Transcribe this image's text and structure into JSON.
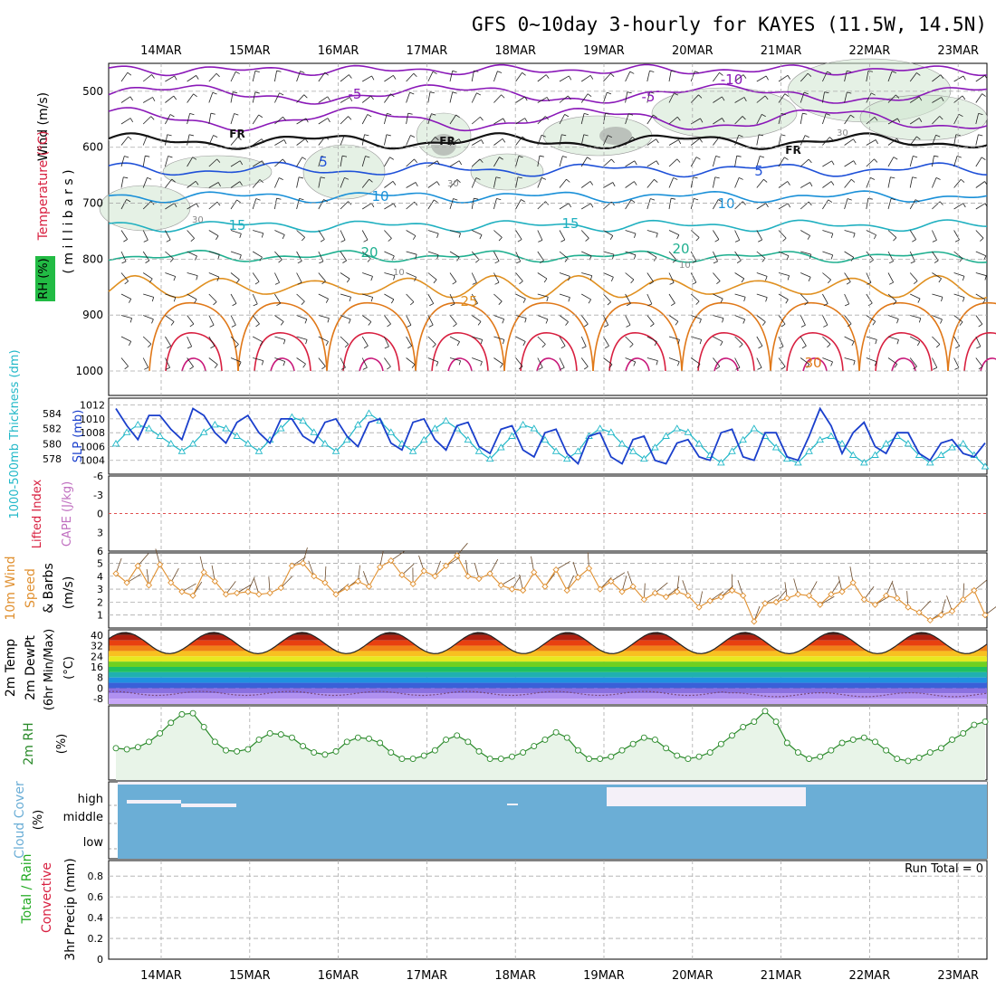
{
  "title": "GFS 0~10day 3-hourly for KAYES (11.5W, 14.5N)",
  "dates": [
    "14MAR",
    "15MAR",
    "16MAR",
    "17MAR",
    "18MAR",
    "19MAR",
    "20MAR",
    "21MAR",
    "22MAR",
    "23MAR"
  ],
  "colors": {
    "temp_cold": "#8a18b8",
    "temp_mid": "#1e50d8",
    "temp_warm": "#e09020",
    "temp_hot": "#d82040",
    "slp": "#1a3fcc",
    "thickness": "#22b8c8",
    "wind10": "#e09030",
    "rh2m": "#2a8a2a",
    "cloud": "#6baed6",
    "grid": "#aaaaaa"
  },
  "panels": {
    "upper": {
      "ylabel_wind": "Wind (m/s)",
      "ylabel_temp": "Temperature (°C)",
      "ylabel_rh": "RH (%)",
      "ylabel_mb": "( m i l l i b a r s )",
      "yticks": [
        "500",
        "600",
        "700",
        "800",
        "900",
        "1000"
      ],
      "freezing_label": "FR",
      "contour_labels": [
        "-10",
        "-5",
        "5",
        "10",
        "15",
        "20",
        "25",
        "30"
      ],
      "rh_labels": [
        "30",
        "10"
      ]
    },
    "slp": {
      "ylabel_thick": "1000-500mb Thickness (dm)",
      "ylabel_slp": "SLP (mb)",
      "left_ticks": [
        "584",
        "582",
        "580",
        "578"
      ],
      "right_ticks": [
        "1012",
        "1010",
        "1008",
        "1006",
        "1004"
      ]
    },
    "cape": {
      "ylabel_li": "Lifted Index",
      "ylabel_cape": "CAPE (J/kg)",
      "ticks": [
        "-6",
        "-3",
        "0",
        "3",
        "6"
      ]
    },
    "wind10": {
      "ylabel": "10m Wind",
      "ylabel2": "Speed",
      "ylabel3": "& Barbs",
      "ylabel_units": "(m/s)",
      "ticks": [
        "5",
        "4",
        "3",
        "2",
        "1"
      ]
    },
    "temp2m": {
      "ylabel1": "2m Temp",
      "ylabel2": "2m DewPt",
      "ylabel3": "(6hr Min/Max)",
      "ylabel_units": "(°C)",
      "ticks": [
        "40",
        "32",
        "24",
        "16",
        "8",
        "0",
        "-8"
      ]
    },
    "rh2m": {
      "ylabel": "2m RH",
      "ylabel_units": "(%)"
    },
    "cloud": {
      "ylabel": "Cloud Cover",
      "ylabel_units": "(%)",
      "levels": [
        "high",
        "middle",
        "low"
      ]
    },
    "precip": {
      "ylabel1": "Total / Rain",
      "ylabel2": "Convective",
      "ylabel3": "3hr Precip (mm)",
      "ticks": [
        "0.8",
        "0.6",
        "0.4",
        "0.2",
        "0"
      ],
      "run_total": "Run Total = 0"
    }
  },
  "chart_data": {
    "type": "line",
    "time_step_hours": 3,
    "n_steps": 80,
    "series": [
      {
        "name": "SLP (mb)",
        "panel": "slp",
        "values": [
          1011.5,
          1009,
          1007,
          1010.5,
          1010.5,
          1008.5,
          1007,
          1011.5,
          1010.5,
          1008,
          1006.5,
          1009.5,
          1010.5,
          1008,
          1006.5,
          1010,
          1010,
          1007.5,
          1006.5,
          1009.5,
          1010,
          1007.5,
          1006,
          1009.5,
          1010,
          1006.5,
          1005.5,
          1009.5,
          1010,
          1007,
          1005.5,
          1009,
          1009.5,
          1006,
          1005,
          1008.5,
          1009,
          1005.5,
          1004.5,
          1008,
          1008.5,
          1005,
          1003.5,
          1007.5,
          1008,
          1004.5,
          1003.5,
          1007,
          1007.5,
          1004,
          1003.5,
          1006.5,
          1007,
          1004.5,
          1004,
          1008,
          1008.5,
          1004.5,
          1004,
          1008,
          1008,
          1004.5,
          1004,
          1007.5,
          1011.5,
          1009,
          1005,
          1008,
          1009.5,
          1006,
          1005,
          1008,
          1008,
          1005,
          1004,
          1006.5,
          1007,
          1005,
          1004.5,
          1006.5
        ]
      },
      {
        "name": "1000-500mb Thickness (dm)",
        "panel": "slp",
        "values": [
          580,
          581.5,
          582.5,
          582,
          581,
          580,
          579,
          580,
          581.5,
          582.5,
          582,
          581,
          580,
          579,
          580.5,
          582,
          583.5,
          583,
          581.5,
          580,
          579,
          580.5,
          582.5,
          584,
          583,
          581.5,
          580,
          579,
          580.5,
          582,
          583,
          582,
          580.5,
          579,
          578,
          579.5,
          581,
          582.5,
          582,
          580.5,
          579,
          578,
          579,
          581,
          582,
          581.5,
          580,
          579,
          578,
          579.5,
          581,
          582,
          581.5,
          580,
          578.5,
          577.5,
          579,
          580.5,
          582,
          581,
          579.5,
          578,
          577.5,
          579,
          580.5,
          581,
          580,
          578.5,
          577.5,
          578.5,
          580,
          581,
          580,
          578.5,
          577.5,
          578.5,
          579.5,
          580,
          578.5,
          577
        ]
      },
      {
        "name": "10m Wind Speed (m/s)",
        "panel": "wind10",
        "values": [
          4.2,
          3.5,
          4.8,
          3.3,
          4.9,
          3.5,
          2.8,
          2.5,
          4.3,
          3.6,
          2.6,
          2.7,
          2.8,
          2.6,
          2.7,
          3.1,
          4.8,
          5.0,
          4.0,
          3.5,
          2.6,
          3.1,
          3.6,
          3.2,
          4.7,
          5.2,
          4.1,
          3.4,
          4.4,
          4.0,
          4.8,
          5.6,
          4.0,
          3.8,
          4.2,
          3.3,
          3.0,
          2.9,
          4.3,
          3.2,
          4.5,
          2.9,
          3.9,
          4.6,
          3.0,
          3.6,
          2.8,
          3.2,
          2.2,
          2.7,
          2.4,
          2.8,
          2.5,
          1.6,
          2.1,
          2.4,
          2.9,
          2.5,
          0.5,
          1.9,
          2.0,
          2.3,
          2.6,
          2.5,
          1.8,
          2.6,
          2.8,
          3.5,
          2.2,
          1.8,
          2.5,
          2.3,
          1.6,
          1.2,
          0.6,
          1.0,
          1.3,
          2.2,
          2.9,
          1.0
        ]
      },
      {
        "name": "2m RH (%)",
        "panel": "rh2m",
        "values": [
          30,
          29,
          31,
          36,
          44,
          54,
          62,
          63,
          50,
          36,
          28,
          27,
          29,
          38,
          44,
          43,
          40,
          32,
          26,
          24,
          27,
          36,
          40,
          39,
          35,
          26,
          20,
          20,
          23,
          28,
          38,
          42,
          36,
          27,
          20,
          20,
          22,
          26,
          32,
          38,
          45,
          40,
          28,
          20,
          20,
          22,
          28,
          34,
          40,
          38,
          30,
          23,
          20,
          22,
          26,
          34,
          42,
          50,
          55,
          65,
          55,
          35,
          26,
          20,
          22,
          28,
          35,
          38,
          40,
          36,
          28,
          20,
          18,
          21,
          26,
          30,
          38,
          44,
          52,
          55
        ]
      }
    ]
  }
}
